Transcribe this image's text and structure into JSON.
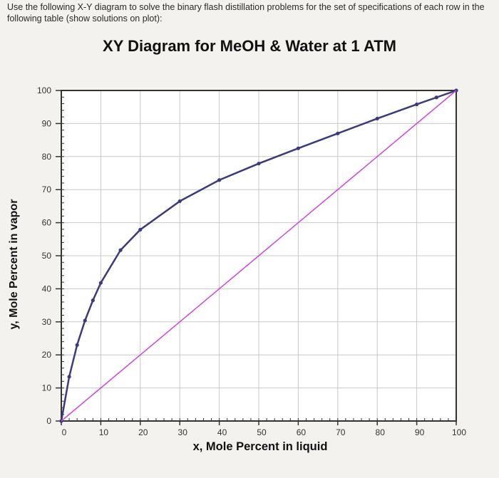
{
  "instructions": "Use the following X-Y diagram to solve the binary flash distillation problems for the set of specifications of each row in the following table (show solutions on plot):",
  "chart_data": {
    "type": "line",
    "title": "XY Diagram for MeOH & Water at 1 ATM",
    "xlabel": "x, Mole Percent in liquid",
    "ylabel": "y, Mole Percent in vapor",
    "xlim": [
      0,
      100
    ],
    "ylim": [
      0,
      100
    ],
    "xticks": [
      0,
      10,
      20,
      30,
      40,
      50,
      60,
      70,
      80,
      90,
      100
    ],
    "yticks": [
      0,
      10,
      20,
      30,
      40,
      50,
      60,
      70,
      80,
      90,
      100
    ],
    "grid": true,
    "series": [
      {
        "type": "line-with-markers",
        "color": "#3d3a7c",
        "x": [
          0,
          2,
          4,
          6,
          8,
          10,
          15,
          20,
          30,
          40,
          50,
          60,
          70,
          80,
          90,
          95,
          100
        ],
        "y": [
          0,
          13.4,
          23.0,
          30.4,
          36.5,
          41.8,
          51.7,
          57.9,
          66.5,
          72.9,
          77.9,
          82.5,
          87.0,
          91.5,
          95.8,
          97.9,
          100
        ]
      },
      {
        "type": "line",
        "color": "#cc44dd",
        "x": [
          0,
          100
        ],
        "y": [
          0,
          100
        ]
      }
    ]
  }
}
